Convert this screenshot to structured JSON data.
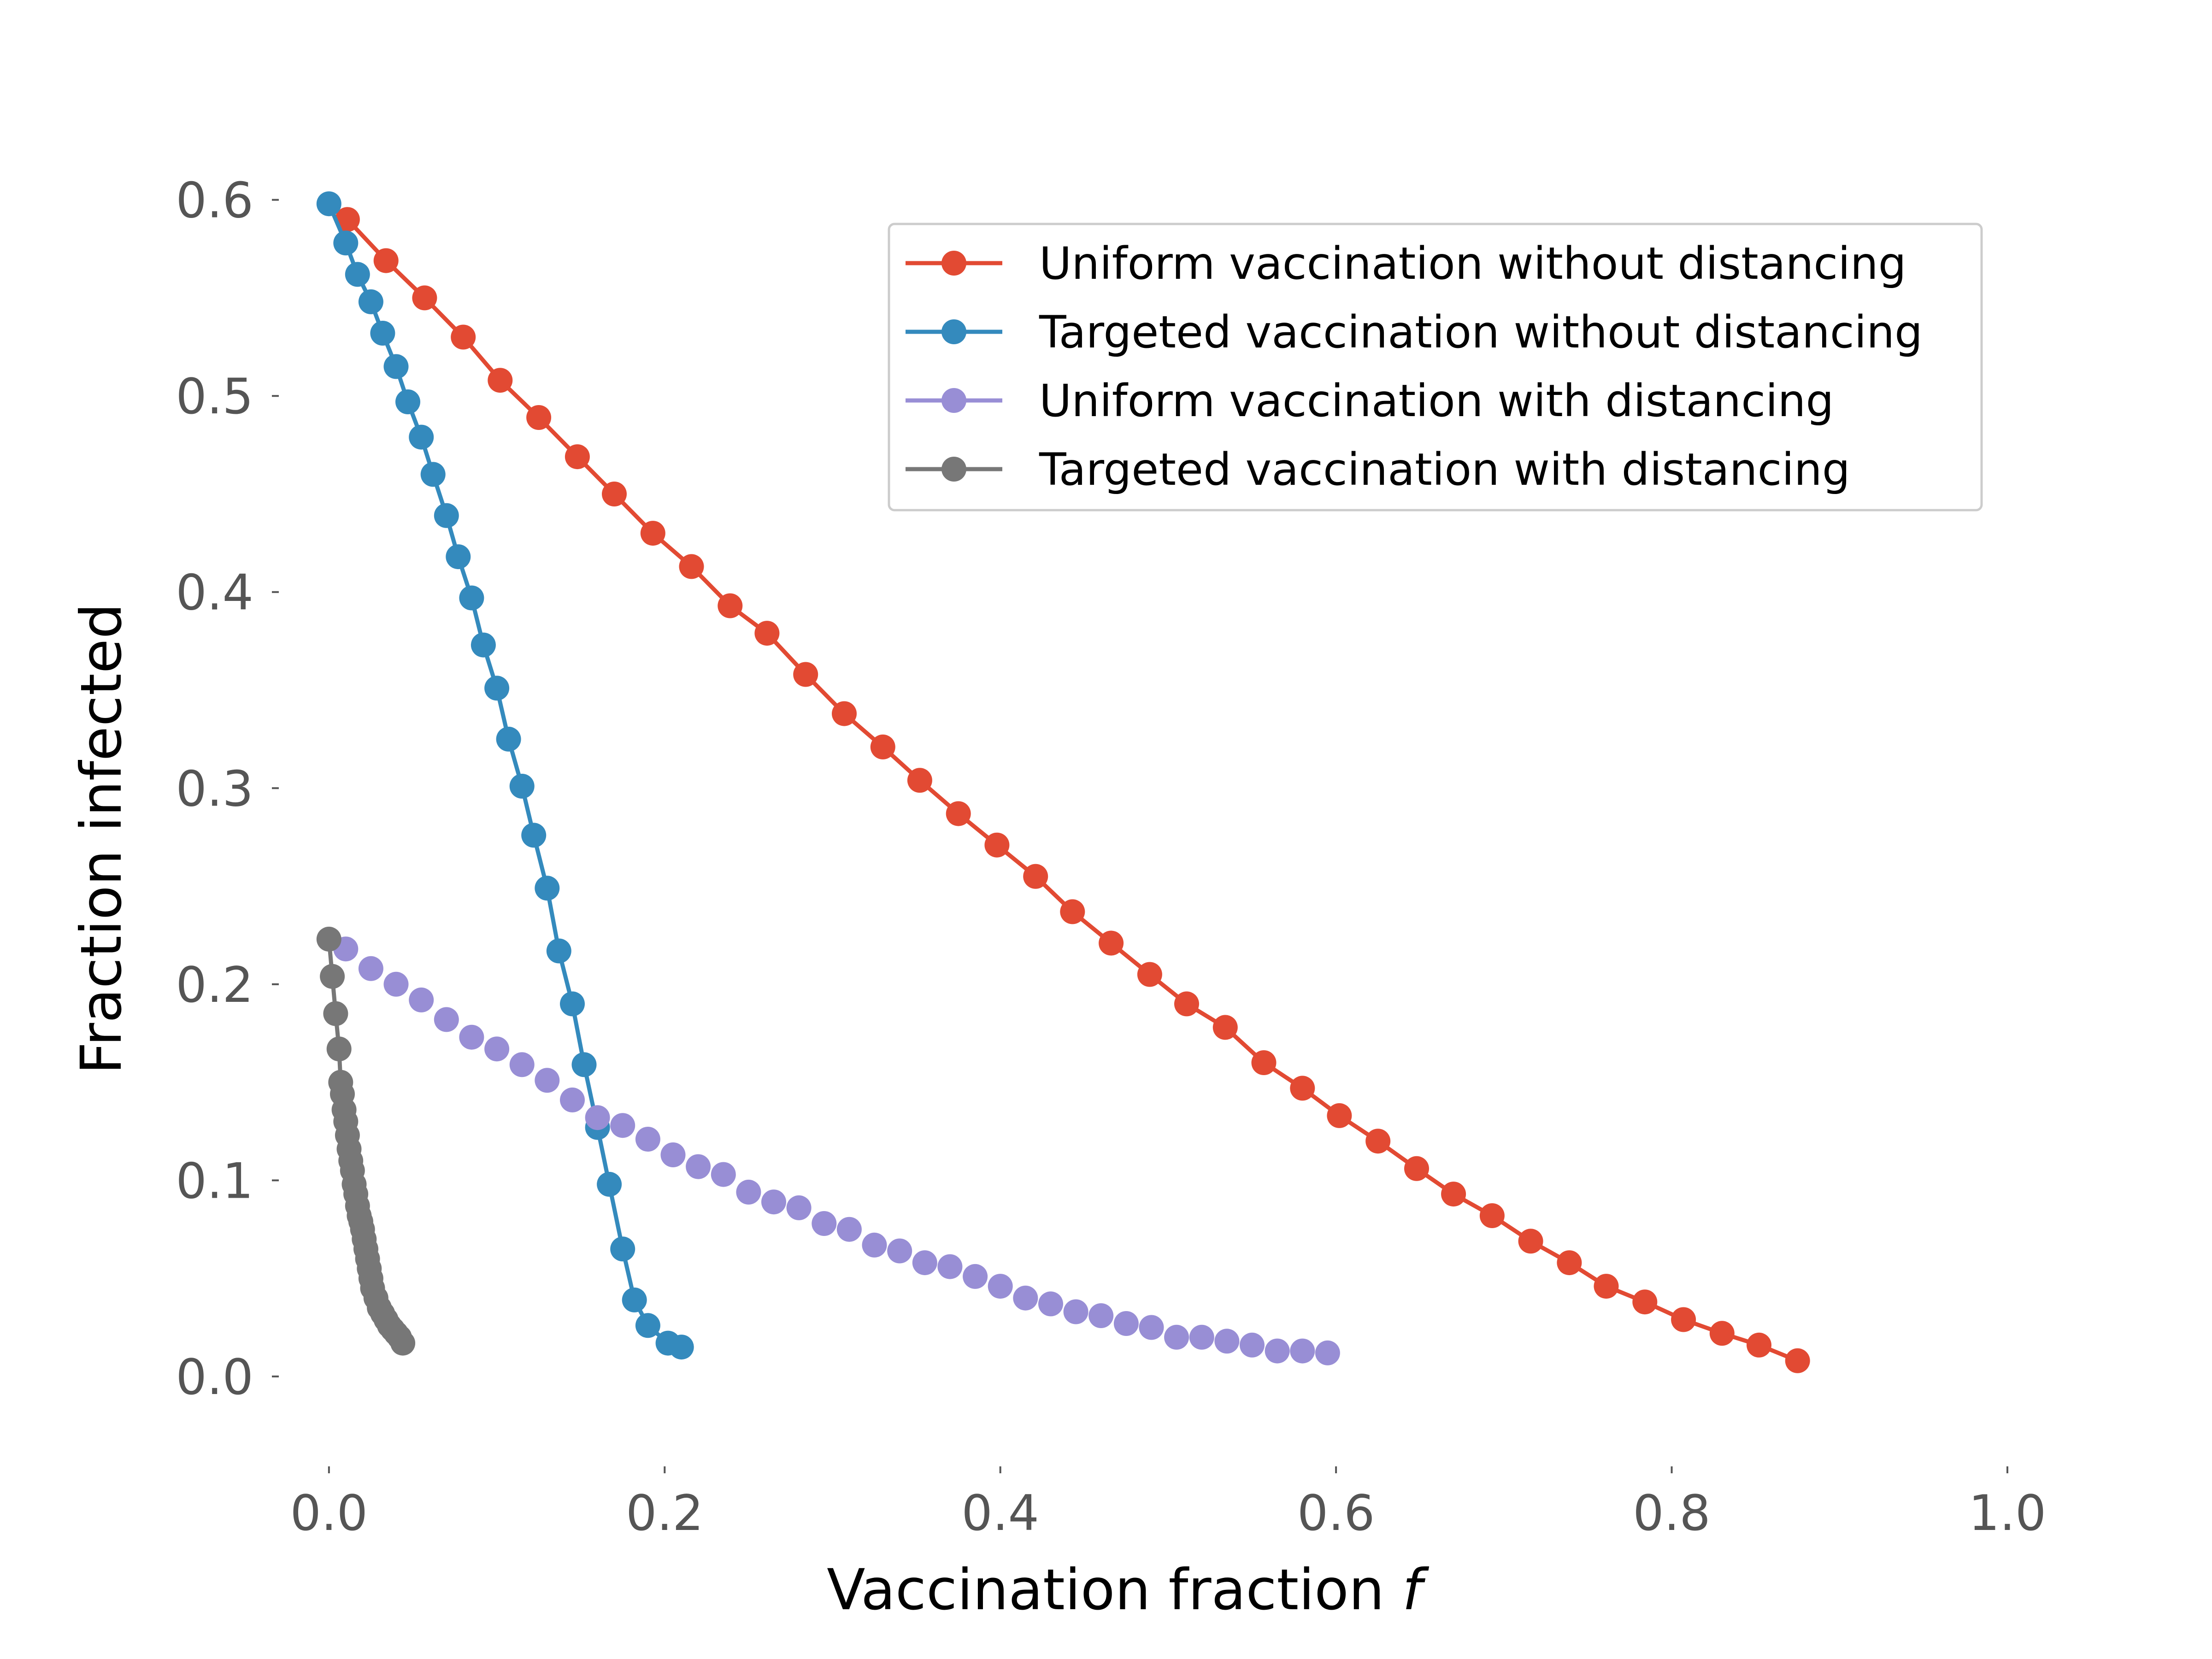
{
  "chart_data": {
    "type": "line",
    "title": "",
    "xlabel": "Vaccination fraction",
    "xlabel_var": "f",
    "ylabel": "Fraction infected",
    "xlim": [
      -0.02,
      1.0
    ],
    "ylim": [
      -0.02,
      0.63
    ],
    "xticks": [
      {
        "value": 0.0,
        "label": "0.0"
      },
      {
        "value": 0.2,
        "label": "0.2"
      },
      {
        "value": 0.4,
        "label": "0.4"
      },
      {
        "value": 0.6,
        "label": "0.6"
      },
      {
        "value": 0.8,
        "label": "0.8"
      },
      {
        "value": 1.0,
        "label": "1.0"
      }
    ],
    "yticks": [
      {
        "value": 0.0,
        "label": "0.0"
      },
      {
        "value": 0.1,
        "label": "0.1"
      },
      {
        "value": 0.2,
        "label": "0.2"
      },
      {
        "value": 0.3,
        "label": "0.3"
      },
      {
        "value": 0.4,
        "label": "0.4"
      },
      {
        "value": 0.5,
        "label": "0.5"
      },
      {
        "value": 0.6,
        "label": "0.6"
      }
    ],
    "grid": false,
    "legend_position": "top-right",
    "series": [
      {
        "name": "Uniform vaccination without distancing",
        "color": "#E24A33",
        "line": true,
        "x": [
          0.011,
          0.034,
          0.057,
          0.08,
          0.102,
          0.125,
          0.148,
          0.17,
          0.193,
          0.216,
          0.239,
          0.261,
          0.284,
          0.307,
          0.33,
          0.352,
          0.375,
          0.398,
          0.421,
          0.443,
          0.466,
          0.489,
          0.511,
          0.534,
          0.557,
          0.58,
          0.602,
          0.625,
          0.648,
          0.67,
          0.693,
          0.716,
          0.739,
          0.761,
          0.784,
          0.807,
          0.83,
          0.852,
          0.875
        ],
        "y": [
          0.59,
          0.569,
          0.55,
          0.53,
          0.508,
          0.489,
          0.469,
          0.45,
          0.43,
          0.413,
          0.393,
          0.379,
          0.358,
          0.338,
          0.321,
          0.304,
          0.287,
          0.271,
          0.255,
          0.237,
          0.221,
          0.205,
          0.19,
          0.178,
          0.16,
          0.147,
          0.133,
          0.12,
          0.106,
          0.093,
          0.082,
          0.069,
          0.058,
          0.046,
          0.038,
          0.029,
          0.022,
          0.016,
          0.008
        ]
      },
      {
        "name": "Targeted vaccination without distancing",
        "color": "#348ABD",
        "line": true,
        "x": [
          0.0,
          0.01,
          0.017,
          0.025,
          0.032,
          0.04,
          0.047,
          0.055,
          0.062,
          0.07,
          0.077,
          0.085,
          0.092,
          0.1,
          0.107,
          0.115,
          0.122,
          0.13,
          0.137,
          0.145,
          0.152,
          0.16,
          0.167,
          0.175,
          0.182,
          0.19,
          0.202,
          0.21
        ],
        "y": [
          0.598,
          0.578,
          0.562,
          0.548,
          0.532,
          0.515,
          0.497,
          0.479,
          0.46,
          0.439,
          0.418,
          0.397,
          0.373,
          0.351,
          0.325,
          0.301,
          0.276,
          0.249,
          0.217,
          0.19,
          0.159,
          0.127,
          0.098,
          0.065,
          0.039,
          0.026,
          0.017,
          0.015
        ]
      },
      {
        "name": "Uniform vaccination with distancing",
        "color": "#988ED5",
        "line": false,
        "x": [
          0.01,
          0.025,
          0.04,
          0.055,
          0.07,
          0.085,
          0.1,
          0.115,
          0.13,
          0.145,
          0.16,
          0.175,
          0.19,
          0.205,
          0.22,
          0.235,
          0.25,
          0.265,
          0.28,
          0.295,
          0.31,
          0.325,
          0.34,
          0.355,
          0.37,
          0.385,
          0.4,
          0.415,
          0.43,
          0.445,
          0.46,
          0.475,
          0.49,
          0.505,
          0.52,
          0.535,
          0.55,
          0.565,
          0.58,
          0.595
        ],
        "y": [
          0.218,
          0.208,
          0.2,
          0.192,
          0.182,
          0.173,
          0.167,
          0.159,
          0.151,
          0.141,
          0.132,
          0.128,
          0.121,
          0.113,
          0.107,
          0.103,
          0.094,
          0.089,
          0.086,
          0.078,
          0.075,
          0.067,
          0.064,
          0.058,
          0.056,
          0.051,
          0.046,
          0.04,
          0.037,
          0.033,
          0.031,
          0.027,
          0.025,
          0.02,
          0.02,
          0.018,
          0.016,
          0.013,
          0.013,
          0.012
        ]
      },
      {
        "name": "Targeted vaccination with distancing",
        "color": "#777777",
        "line": true,
        "x": [
          0.0,
          0.002,
          0.004,
          0.006,
          0.007,
          0.008,
          0.009,
          0.01,
          0.011,
          0.012,
          0.013,
          0.014,
          0.015,
          0.016,
          0.017,
          0.018,
          0.019,
          0.02,
          0.021,
          0.022,
          0.023,
          0.024,
          0.025,
          0.026,
          0.028,
          0.03,
          0.032,
          0.034,
          0.036,
          0.038,
          0.04,
          0.042,
          0.044
        ],
        "y": [
          0.223,
          0.204,
          0.185,
          0.167,
          0.15,
          0.144,
          0.136,
          0.13,
          0.123,
          0.116,
          0.11,
          0.105,
          0.098,
          0.093,
          0.087,
          0.082,
          0.079,
          0.075,
          0.07,
          0.065,
          0.06,
          0.055,
          0.05,
          0.045,
          0.04,
          0.035,
          0.032,
          0.029,
          0.026,
          0.024,
          0.022,
          0.02,
          0.017
        ]
      }
    ]
  }
}
